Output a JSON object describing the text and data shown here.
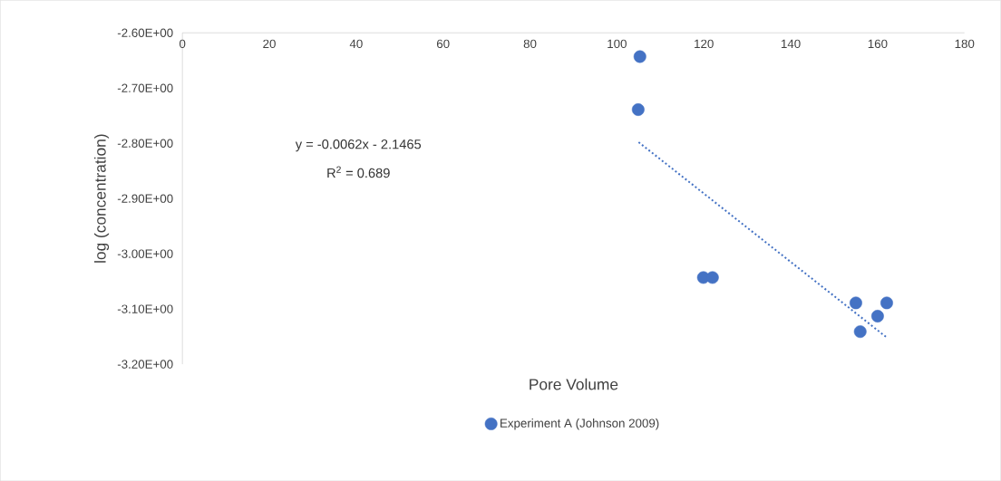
{
  "chart_data": {
    "type": "scatter",
    "xlabel": "Pore Volume",
    "ylabel": "log (concentration)",
    "xlim": [
      0,
      180
    ],
    "xticks": [
      0,
      20,
      40,
      60,
      80,
      100,
      120,
      140,
      160,
      180
    ],
    "ylim": [
      -3.2,
      -2.6
    ],
    "yticks": [
      {
        "value": -2.6,
        "label": "-2.60E+00"
      },
      {
        "value": -2.7,
        "label": "-2.70E+00"
      },
      {
        "value": -2.8,
        "label": "-2.80E+00"
      },
      {
        "value": -2.9,
        "label": "-2.90E+00"
      },
      {
        "value": -3.0,
        "label": "-3.00E+00"
      },
      {
        "value": -3.1,
        "label": "-3.10E+00"
      },
      {
        "value": -3.2,
        "label": "-3.20E+00"
      }
    ],
    "series": [
      {
        "name": "Experiment A (Johnson 2009)",
        "color": "#4472c4",
        "marker": "circle",
        "x": [
          105.3,
          104.9,
          119.9,
          122.0,
          155.0,
          156.0,
          160.0,
          162.1
        ],
        "values": [
          -2.643,
          -2.739,
          -3.043,
          -3.043,
          -3.089,
          -3.141,
          -3.113,
          -3.089
        ]
      },
      {
        "type": "line",
        "color": "#4472c4",
        "marker": "none",
        "line_style": "dotted",
        "x": [
          105,
          162
        ],
        "values": [
          -2.798,
          -3.151
        ]
      }
    ],
    "annotations": [
      "y = -0.0062x - 2.1465",
      "R$^{2}$ = 0.689"
    ],
    "legend": "bottom"
  }
}
